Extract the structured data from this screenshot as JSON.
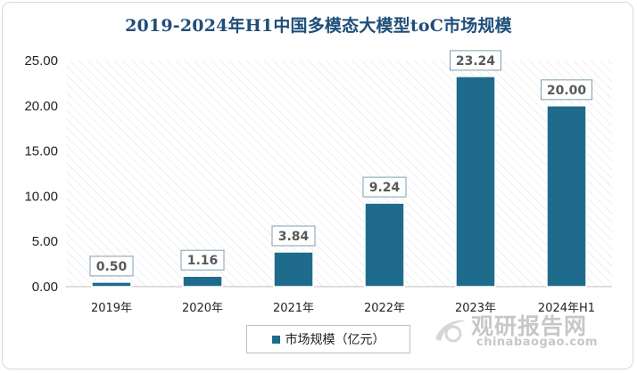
{
  "chart_data": {
    "type": "bar",
    "title": "2019-2024年H1中国多模态大模型toC市场规模",
    "categories": [
      "2019年",
      "2020年",
      "2021年",
      "2022年",
      "2023年",
      "2024年H1"
    ],
    "series": [
      {
        "name": "市场规模（亿元）",
        "values": [
          0.5,
          1.16,
          3.84,
          9.24,
          23.24,
          20.0
        ],
        "labels": [
          "0.50",
          "1.16",
          "3.84",
          "9.24",
          "23.24",
          "20.00"
        ],
        "color": "#1e6b8c"
      }
    ],
    "yticks": [
      "0.00",
      "5.00",
      "10.00",
      "15.00",
      "20.00",
      "25.00"
    ],
    "ylim": [
      0,
      25
    ],
    "grid": false,
    "legend": "bottom-center",
    "background_pattern": "diagonal-hatch"
  },
  "watermark": {
    "name_cn": "观研报告网",
    "domain": "chinabaogao.com"
  }
}
